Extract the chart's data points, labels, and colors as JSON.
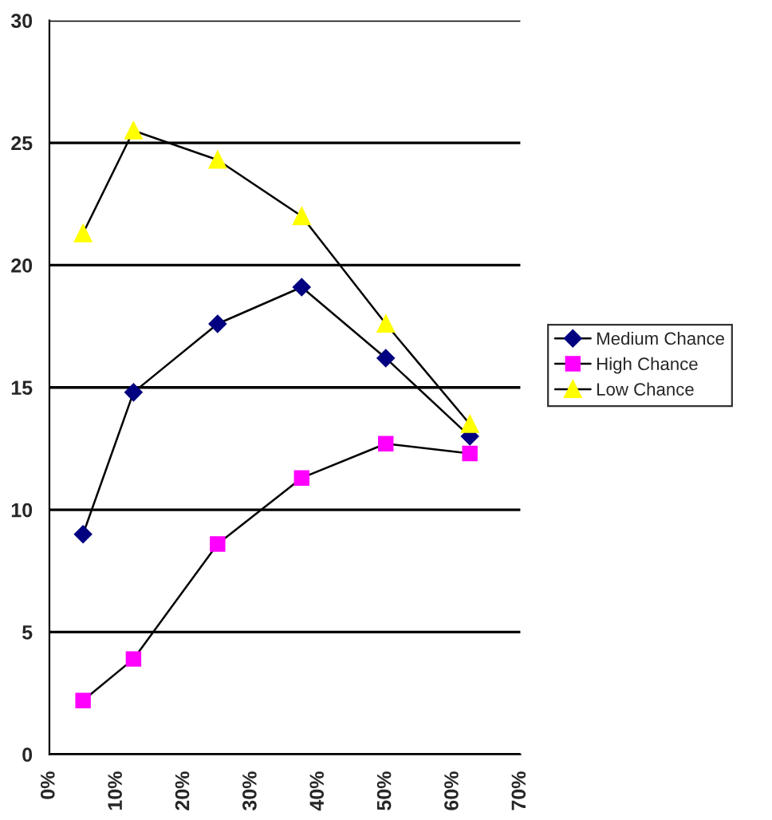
{
  "chart_data": {
    "type": "line",
    "x": [
      5,
      12.5,
      25,
      37.5,
      50,
      62.5
    ],
    "series": [
      {
        "name": "Medium Chance",
        "color": "#000080",
        "marker": "diamond",
        "values": [
          9.0,
          14.8,
          17.6,
          19.1,
          16.2,
          13.0
        ]
      },
      {
        "name": "High Chance",
        "color": "#ff00ff",
        "marker": "square",
        "values": [
          2.2,
          3.9,
          8.6,
          11.3,
          12.7,
          12.3
        ]
      },
      {
        "name": "Low Chance",
        "color": "#ffff00",
        "marker": "triangle",
        "values": [
          21.3,
          25.5,
          24.3,
          22.0,
          17.6,
          13.5
        ]
      }
    ],
    "xlim": [
      0,
      70
    ],
    "xticks": [
      {
        "value": 0,
        "label": "0%"
      },
      {
        "value": 10,
        "label": "10%"
      },
      {
        "value": 20,
        "label": "20%"
      },
      {
        "value": 30,
        "label": "30%"
      },
      {
        "value": 40,
        "label": "40%"
      },
      {
        "value": 50,
        "label": "50%"
      },
      {
        "value": 60,
        "label": "60%"
      },
      {
        "value": 70,
        "label": "70%"
      }
    ],
    "ylim": [
      0,
      30
    ],
    "yticks": [
      0,
      5,
      10,
      15,
      20,
      25,
      30
    ],
    "grid": "y",
    "legend": "right"
  }
}
